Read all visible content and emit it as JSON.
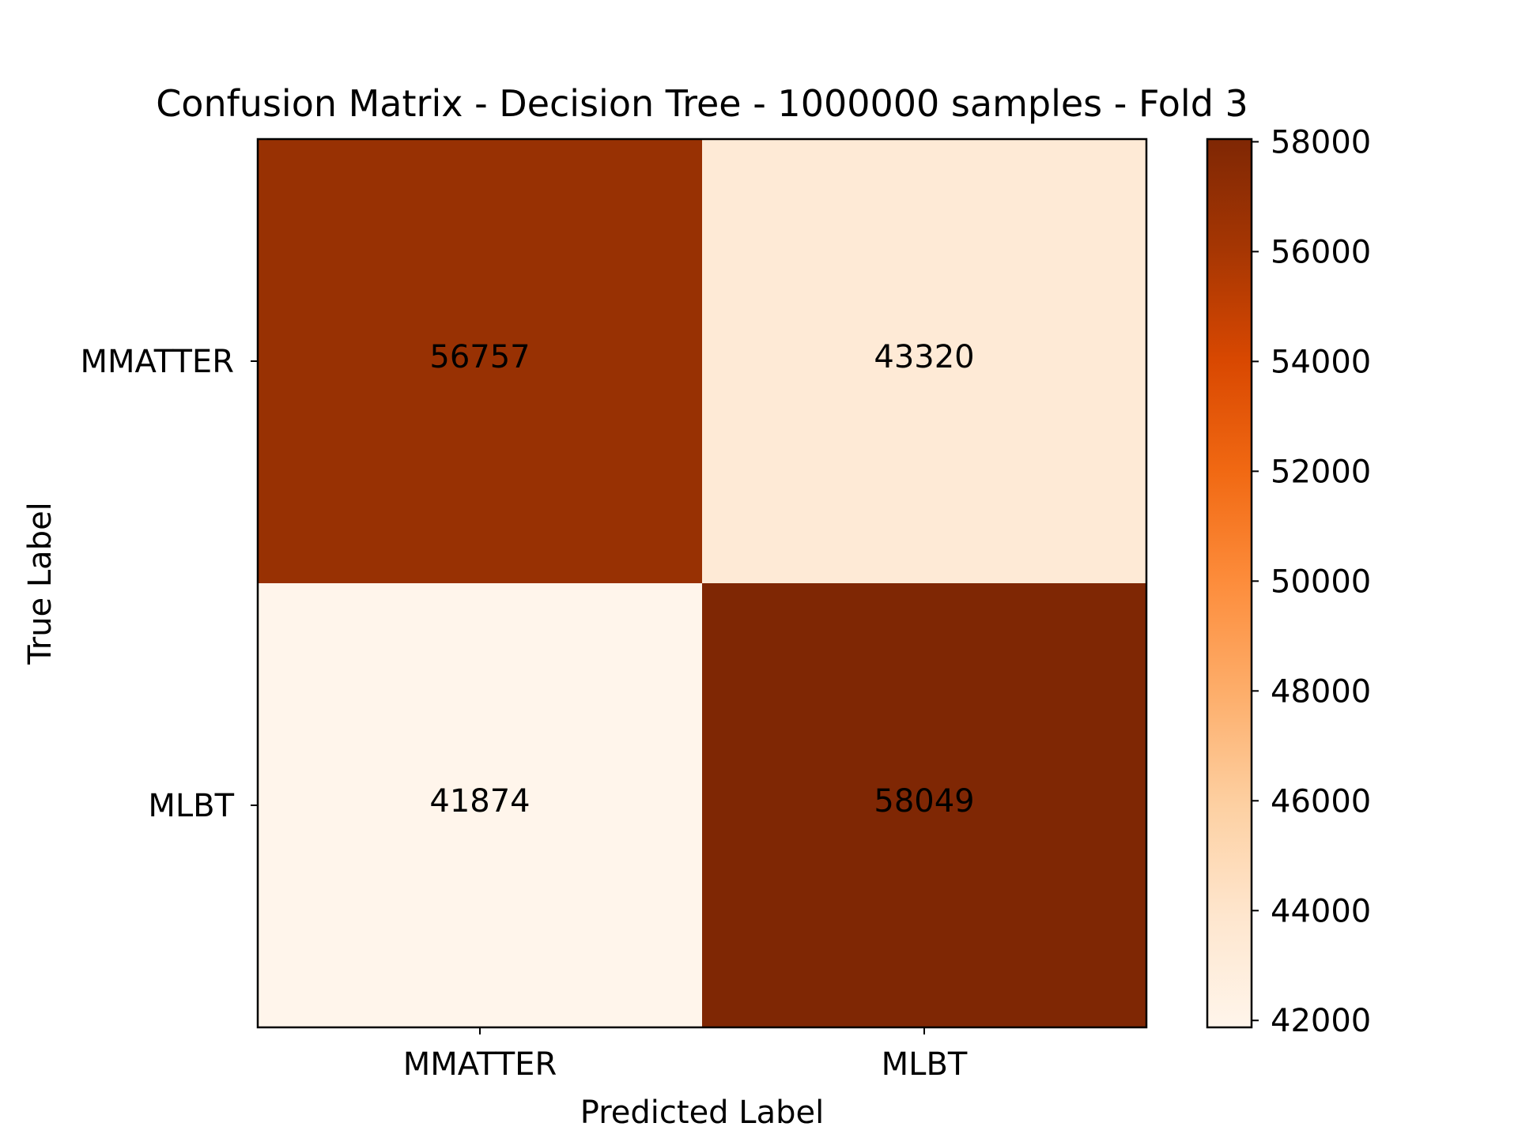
{
  "chart_data": {
    "type": "heatmap",
    "title": "Confusion Matrix - Decision Tree - 1000000 samples - Fold 3",
    "xlabel": "Predicted Label",
    "ylabel": "True Label",
    "x_categories": [
      "MMATTER",
      "MLBT"
    ],
    "y_categories": [
      "MMATTER",
      "MLBT"
    ],
    "values": [
      [
        56757,
        43320
      ],
      [
        41874,
        58049
      ]
    ],
    "colormap": "Oranges",
    "colorbar": {
      "range": [
        41874,
        58049
      ],
      "ticks": [
        42000,
        44000,
        46000,
        48000,
        50000,
        52000,
        54000,
        56000,
        58000
      ],
      "tick_labels": [
        "42000",
        "44000",
        "46000",
        "48000",
        "50000",
        "52000",
        "54000",
        "56000",
        "58000"
      ],
      "colors": [
        "#fff5eb",
        "#fee6ce",
        "#fdd0a2",
        "#fdae6b",
        "#fd8d3c",
        "#f16913",
        "#d94801",
        "#a63603",
        "#7f2704"
      ]
    },
    "grid": false
  }
}
